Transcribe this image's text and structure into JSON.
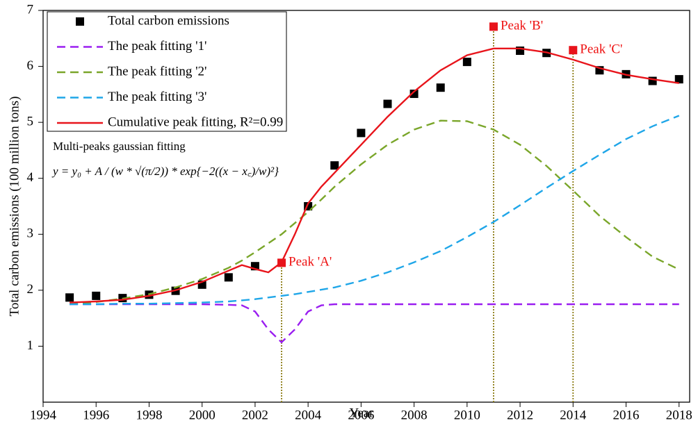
{
  "chart_data": {
    "type": "line",
    "x_label": "Year",
    "y_label": "Total carbon emissions (100 million tons)",
    "xlim": [
      1994,
      2018.4
    ],
    "ylim": [
      0,
      7
    ],
    "xticks": [
      1994,
      1996,
      1998,
      2000,
      2002,
      2004,
      2006,
      2008,
      2010,
      2012,
      2014,
      2016,
      2018
    ],
    "yticks": [
      1,
      2,
      3,
      4,
      5,
      6,
      7
    ],
    "x": [
      1995,
      1996,
      1997,
      1998,
      1999,
      2000,
      2001,
      2001.5,
      2002,
      2002.5,
      2003,
      2003.5,
      2004,
      2004.5,
      2005,
      2006,
      2007,
      2008,
      2009,
      2010,
      2011,
      2012,
      2013,
      2014,
      2015,
      2016,
      2017,
      2018
    ],
    "series": [
      {
        "name": "Total carbon emissions",
        "kind": "scatter",
        "color": "#000000",
        "values": [
          1.87,
          1.9,
          1.86,
          1.92,
          1.99,
          2.1,
          2.23,
          null,
          2.43,
          null,
          null,
          null,
          3.5,
          null,
          4.23,
          4.81,
          5.33,
          5.51,
          5.62,
          6.08,
          null,
          6.28,
          6.24,
          null,
          5.93,
          5.86,
          5.74,
          5.77
        ]
      },
      {
        "name": "The peak fitting '1'",
        "kind": "dashed",
        "color": "#9a1ef0",
        "values": [
          1.75,
          1.75,
          1.75,
          1.75,
          1.75,
          1.75,
          1.74,
          1.73,
          1.62,
          1.3,
          1.07,
          1.3,
          1.62,
          1.73,
          1.75,
          1.75,
          1.75,
          1.75,
          1.75,
          1.75,
          1.75,
          1.75,
          1.75,
          1.75,
          1.75,
          1.75,
          1.75,
          1.75
        ]
      },
      {
        "name": "The peak fitting '2'",
        "kind": "dashed",
        "color": "#7aa62a",
        "values": [
          1.75,
          1.79,
          1.85,
          1.93,
          2.05,
          2.2,
          2.4,
          2.53,
          2.68,
          2.84,
          3.0,
          3.2,
          3.4,
          3.62,
          3.85,
          4.25,
          4.6,
          4.87,
          5.03,
          5.02,
          4.87,
          4.6,
          4.22,
          3.78,
          3.33,
          2.95,
          2.6,
          2.37
        ]
      },
      {
        "name": "The peak fitting '3'",
        "kind": "dashed",
        "color": "#1fa6e8",
        "values": [
          1.75,
          1.75,
          1.76,
          1.76,
          1.77,
          1.78,
          1.8,
          1.82,
          1.84,
          1.87,
          1.9,
          1.93,
          1.97,
          2.01,
          2.05,
          2.17,
          2.32,
          2.5,
          2.7,
          2.95,
          3.22,
          3.52,
          3.83,
          4.13,
          4.42,
          4.7,
          4.93,
          5.12
        ]
      },
      {
        "name": "Cumulative peak fitting, R²=0.99",
        "kind": "solid",
        "color": "#e8141b",
        "values": [
          1.78,
          1.8,
          1.83,
          1.9,
          2.0,
          2.15,
          2.35,
          2.45,
          2.38,
          2.32,
          2.5,
          3.0,
          3.55,
          3.85,
          4.1,
          4.6,
          5.1,
          5.55,
          5.93,
          6.2,
          6.32,
          6.32,
          6.25,
          6.12,
          5.97,
          5.85,
          5.77,
          5.7
        ]
      }
    ],
    "annotations": [
      {
        "label": "Peak 'A'",
        "x": 2003,
        "y": 2.49
      },
      {
        "label": "Peak 'B'",
        "x": 2011,
        "y": 6.71
      },
      {
        "label": "Peak 'C'",
        "x": 2014,
        "y": 6.29
      }
    ],
    "formula_title": "Multi-peaks gaussian fitting",
    "formula": "y = y₀ + A / (w * √(π/2)) * exp{−2((x − x꜀)/w)²}"
  }
}
